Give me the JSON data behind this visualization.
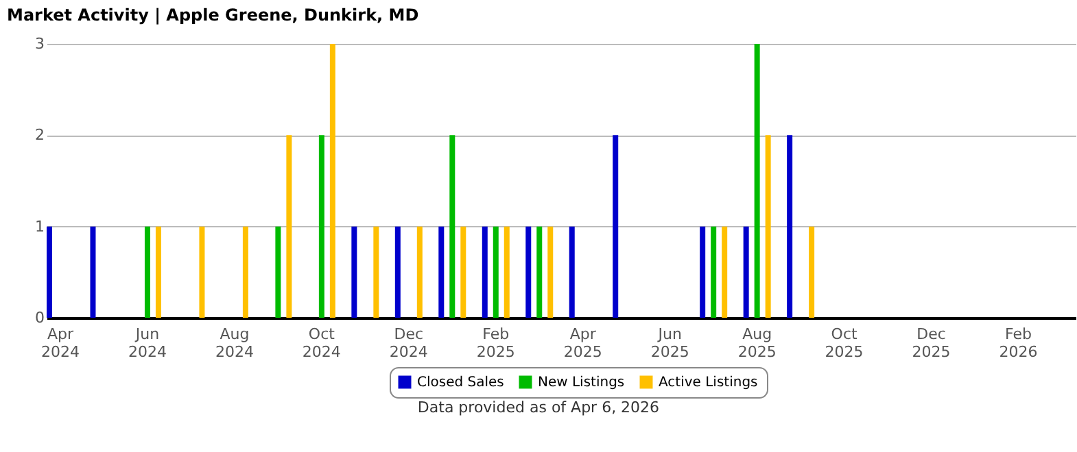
{
  "chart_data": {
    "type": "bar",
    "title": "Market Activity | Apple Greene, Dunkirk, MD",
    "categories": [
      "Apr 2024",
      null,
      "Jun 2024",
      null,
      "Aug 2024",
      null,
      "Oct 2024",
      null,
      "Dec 2024",
      null,
      "Feb 2025",
      null,
      "Apr 2025",
      null,
      "Jun 2025",
      null,
      "Aug 2025",
      null,
      "Oct 2025",
      null,
      "Dec 2025",
      null,
      "Feb 2026",
      null
    ],
    "series": [
      {
        "name": "Closed Sales",
        "color": "#0000cc",
        "values": [
          1,
          1,
          0,
          0,
          0,
          0,
          0,
          1,
          1,
          1,
          1,
          1,
          1,
          2,
          0,
          1,
          1,
          2,
          0,
          0,
          0,
          0,
          0,
          0
        ]
      },
      {
        "name": "New Listings",
        "color": "#00bb00",
        "values": [
          0,
          0,
          1,
          0,
          0,
          1,
          2,
          0,
          0,
          2,
          1,
          1,
          0,
          0,
          0,
          1,
          3,
          0,
          0,
          0,
          0,
          0,
          0,
          0
        ]
      },
      {
        "name": "Active Listings",
        "color": "#ffc000",
        "values": [
          0,
          0,
          1,
          1,
          1,
          2,
          3,
          1,
          1,
          1,
          1,
          1,
          0,
          0,
          0,
          1,
          2,
          1,
          0,
          0,
          0,
          0,
          0,
          0
        ]
      }
    ],
    "ylim": [
      0,
      3
    ],
    "yticks": [
      0,
      1,
      2,
      3
    ],
    "grid": "y",
    "legend": "bottom",
    "annotations": [
      "Data provided as of Apr 6, 2026"
    ]
  }
}
